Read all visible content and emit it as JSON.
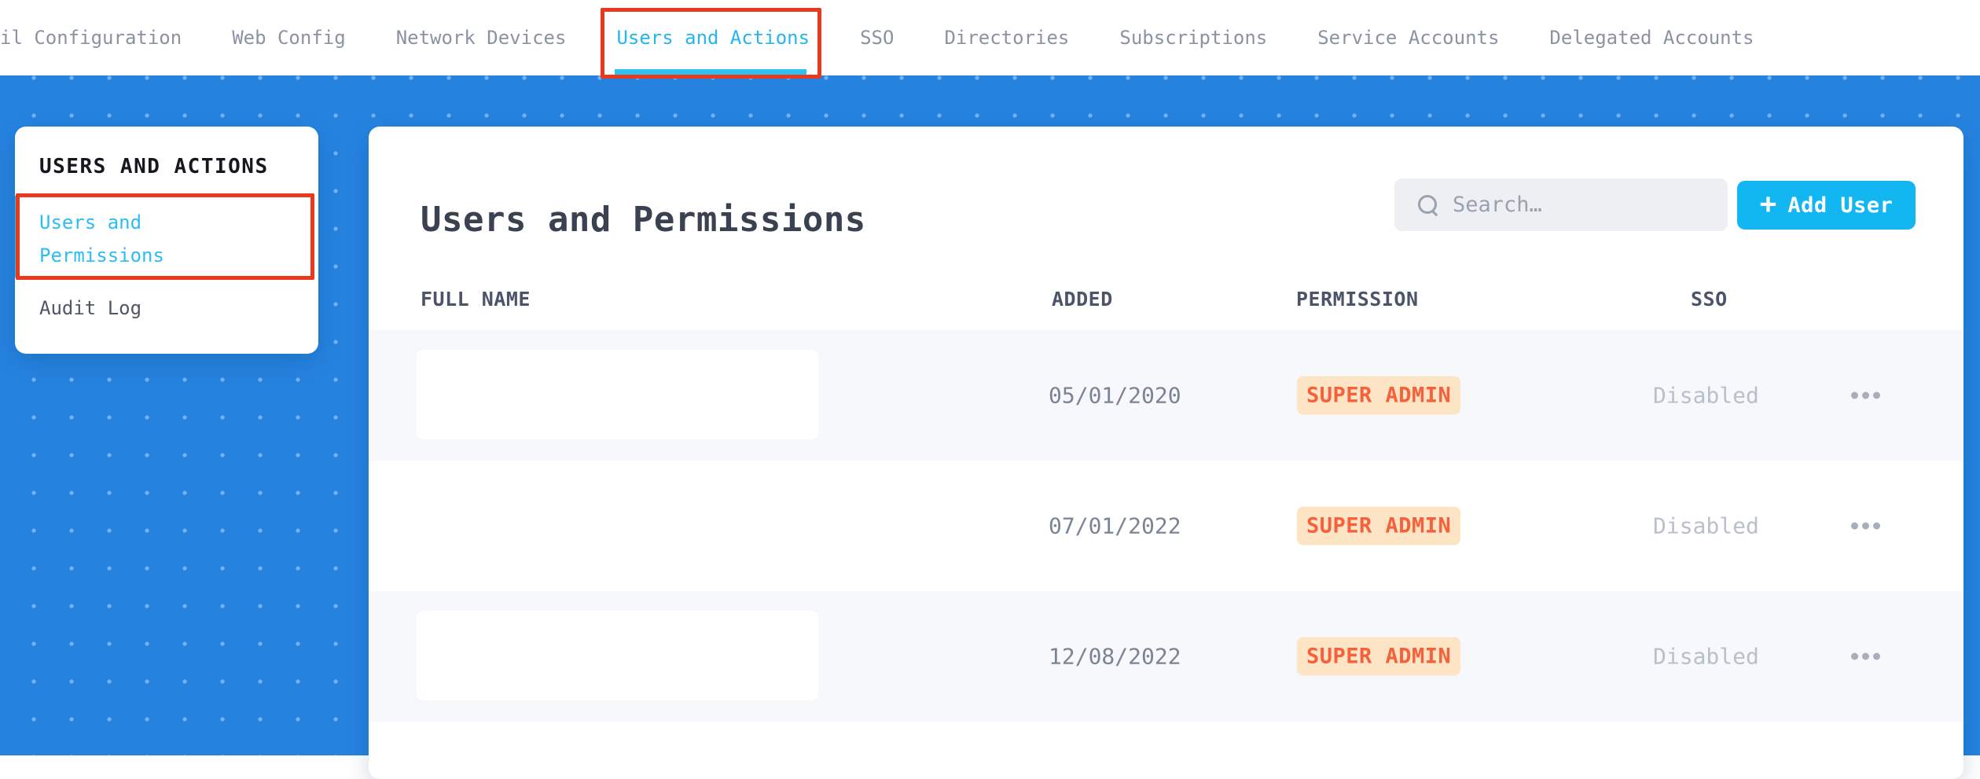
{
  "nav": {
    "active_tab": "Users and Actions",
    "items": [
      {
        "label": "il Configuration"
      },
      {
        "label": "Web Config"
      },
      {
        "label": "Network Devices"
      },
      {
        "label": "Users and Actions"
      },
      {
        "label": "SSO"
      },
      {
        "label": "Directories"
      },
      {
        "label": "Subscriptions"
      },
      {
        "label": "Service Accounts"
      },
      {
        "label": "Delegated Accounts"
      }
    ]
  },
  "sidebar": {
    "title": "USERS AND ACTIONS",
    "active_item": "Users and Permissions",
    "items": [
      {
        "label": "Users and Permissions"
      },
      {
        "label": "Audit Log"
      }
    ]
  },
  "main": {
    "title": "Users and Permissions",
    "search": {
      "placeholder": "Search…",
      "value": ""
    },
    "add_user": {
      "icon": "+",
      "label": "Add User"
    },
    "table": {
      "columns": [
        "FULL NAME",
        "ADDED",
        "PERMISSION",
        "SSO"
      ],
      "rows": [
        {
          "full_name": "",
          "added": "05/01/2020",
          "permission": "SUPER ADMIN",
          "sso": "Disabled"
        },
        {
          "full_name": "",
          "added": "07/01/2022",
          "permission": "SUPER ADMIN",
          "sso": "Disabled"
        },
        {
          "full_name": "",
          "added": "12/08/2022",
          "permission": "SUPER ADMIN",
          "sso": "Disabled"
        }
      ]
    }
  },
  "colors": {
    "accent_cyan": "#12b7f2",
    "active_tab_cyan": "#25b5ef",
    "annotation_red": "#e8391d",
    "background_blue": "#2583df",
    "badge_bg": "#fce4c4",
    "badge_text": "#f4613c",
    "row_alt_bg": "#f6f8fb"
  }
}
